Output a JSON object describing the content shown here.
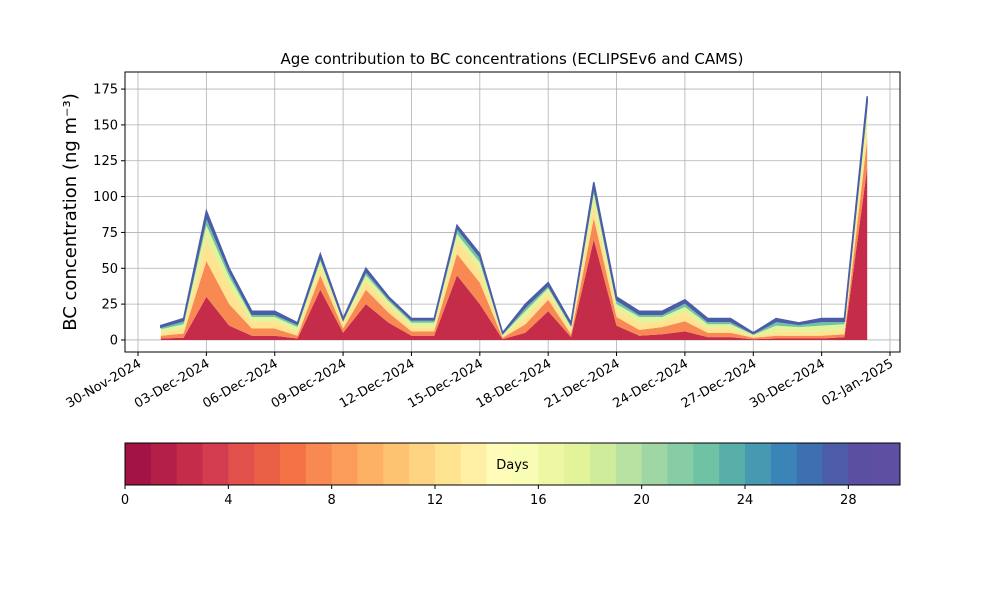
{
  "chart_data": {
    "type": "stacked_area",
    "title": "Age contribution to BC concentrations (ECLIPSEv6 and CAMS)",
    "y_label": "BC concentration (ng m⁻³)",
    "x": [
      "01-Dec-2024",
      "02-Dec-2024",
      "03-Dec-2024",
      "04-Dec-2024",
      "05-Dec-2024",
      "06-Dec-2024",
      "07-Dec-2024",
      "08-Dec-2024",
      "09-Dec-2024",
      "10-Dec-2024",
      "11-Dec-2024",
      "12-Dec-2024",
      "13-Dec-2024",
      "14-Dec-2024",
      "15-Dec-2024",
      "16-Dec-2024",
      "17-Dec-2024",
      "18-Dec-2024",
      "19-Dec-2024",
      "20-Dec-2024",
      "21-Dec-2024",
      "22-Dec-2024",
      "23-Dec-2024",
      "24-Dec-2024",
      "25-Dec-2024",
      "26-Dec-2024",
      "27-Dec-2024",
      "28-Dec-2024",
      "29-Dec-2024",
      "30-Dec-2024",
      "31-Dec-2024",
      "01-Jan-2025"
    ],
    "series": [
      {
        "color": "#c42c4a",
        "values": [
          1,
          1.5,
          30,
          10,
          3,
          3,
          1,
          35,
          5,
          25,
          12,
          3,
          3,
          45,
          25,
          0.5,
          5,
          20,
          2,
          70,
          10,
          3,
          4,
          6,
          2,
          2,
          0.5,
          1,
          1,
          1,
          2,
          120
        ]
      },
      {
        "color": "#f88952",
        "values": [
          2,
          3,
          25,
          15,
          5,
          5,
          2,
          10,
          3,
          10,
          7,
          3,
          3,
          15,
          15,
          1,
          6,
          8,
          2,
          15,
          6,
          4,
          5,
          7,
          3,
          3,
          1,
          2,
          2,
          2,
          2,
          20
        ]
      },
      {
        "color": "#fee391",
        "values": [
          2.5,
          3.5,
          15,
          12,
          5,
          5,
          3,
          6,
          3,
          6,
          5,
          3,
          3,
          9,
          9,
          1,
          5,
          5,
          3,
          10,
          5,
          5,
          4,
          6,
          3,
          3,
          1,
          3,
          3,
          3,
          3,
          12
        ]
      },
      {
        "color": "#e2f399",
        "values": [
          2,
          3,
          10,
          7,
          3,
          3,
          3,
          4,
          2,
          4,
          3,
          3,
          3,
          5,
          5,
          1,
          4,
          3,
          2,
          7,
          4,
          4,
          3,
          4,
          3,
          3,
          1,
          4,
          3,
          4,
          4,
          8
        ]
      },
      {
        "color": "#70c2a5",
        "values": [
          1.5,
          2.5,
          6,
          4,
          2,
          2,
          2,
          3,
          1,
          3,
          2,
          2,
          2,
          4,
          4,
          1,
          3,
          2,
          2,
          5,
          3,
          2,
          2,
          3,
          2,
          2,
          1,
          3,
          2,
          3,
          2,
          6
        ]
      },
      {
        "color": "#4c5ca8",
        "values": [
          1,
          1.5,
          4,
          2,
          2,
          2,
          1,
          2,
          1,
          2,
          1,
          1,
          1,
          2,
          2,
          0.5,
          2,
          2,
          1,
          3,
          2,
          2,
          2,
          2,
          2,
          2,
          0.5,
          2,
          1,
          2,
          2,
          4
        ]
      }
    ],
    "xlim": [
      "30-Nov-2024",
      "02-Jan-2025"
    ],
    "xticks": [
      "30-Nov-2024",
      "03-Dec-2024",
      "06-Dec-2024",
      "09-Dec-2024",
      "12-Dec-2024",
      "15-Dec-2024",
      "18-Dec-2024",
      "21-Dec-2024",
      "24-Dec-2024",
      "27-Dec-2024",
      "30-Dec-2024",
      "02-Jan-2025"
    ],
    "ylim": [
      -8.4,
      186.9
    ],
    "yticks": [
      0,
      25,
      50,
      75,
      100,
      125,
      150,
      175
    ],
    "grid": true,
    "colorbar": {
      "label": "Days",
      "lim": [
        0,
        30
      ],
      "ticks": [
        0,
        4,
        8,
        12,
        16,
        20,
        24,
        28
      ],
      "colors": [
        "#a31346",
        "#b41f48",
        "#c42c4a",
        "#d43d4f",
        "#e1504a",
        "#ea6046",
        "#f47245",
        "#f88952",
        "#fb9c5a",
        "#fdb164",
        "#fdc371",
        "#fed382",
        "#fee391",
        "#fff0a6",
        "#fffbb8",
        "#f8fcb4",
        "#eef8a4",
        "#e2f399",
        "#cfec9d",
        "#b8e2a1",
        "#9fd6a4",
        "#86cca5",
        "#70c2a5",
        "#5aaea9",
        "#4699b0",
        "#3a84b7",
        "#3e6fb0",
        "#4c5ca8",
        "#5b4fa1",
        "#5e4fa2"
      ]
    }
  }
}
